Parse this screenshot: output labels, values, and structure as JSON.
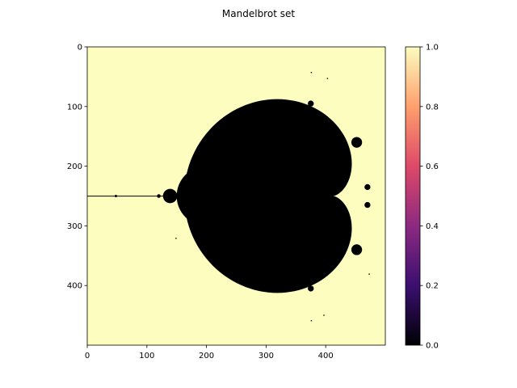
{
  "chart_data": {
    "type": "heatmap",
    "title": "Mandelbrot set",
    "xlabel": "",
    "ylabel": "",
    "x_range": [
      0,
      500
    ],
    "y_range": [
      0,
      500
    ],
    "y_inverted": true,
    "x_ticks": [
      0,
      100,
      200,
      300,
      400
    ],
    "y_ticks": [
      0,
      100,
      200,
      300,
      400
    ],
    "grid": false,
    "colormap": "magma",
    "colorbar": {
      "range": [
        0.0,
        1.0
      ],
      "ticks": [
        "0.0",
        "0.2",
        "0.4",
        "0.6",
        "0.8",
        "1.0"
      ],
      "stops": [
        "#000004",
        "#3b0f70",
        "#8c2981",
        "#de4968",
        "#fe9f6d",
        "#fcfdbf"
      ]
    },
    "values_description_inside": 0.0,
    "values_description_outside": 1.0,
    "colors": {
      "inside": "#000000",
      "outside": "#fcfdbf"
    }
  }
}
